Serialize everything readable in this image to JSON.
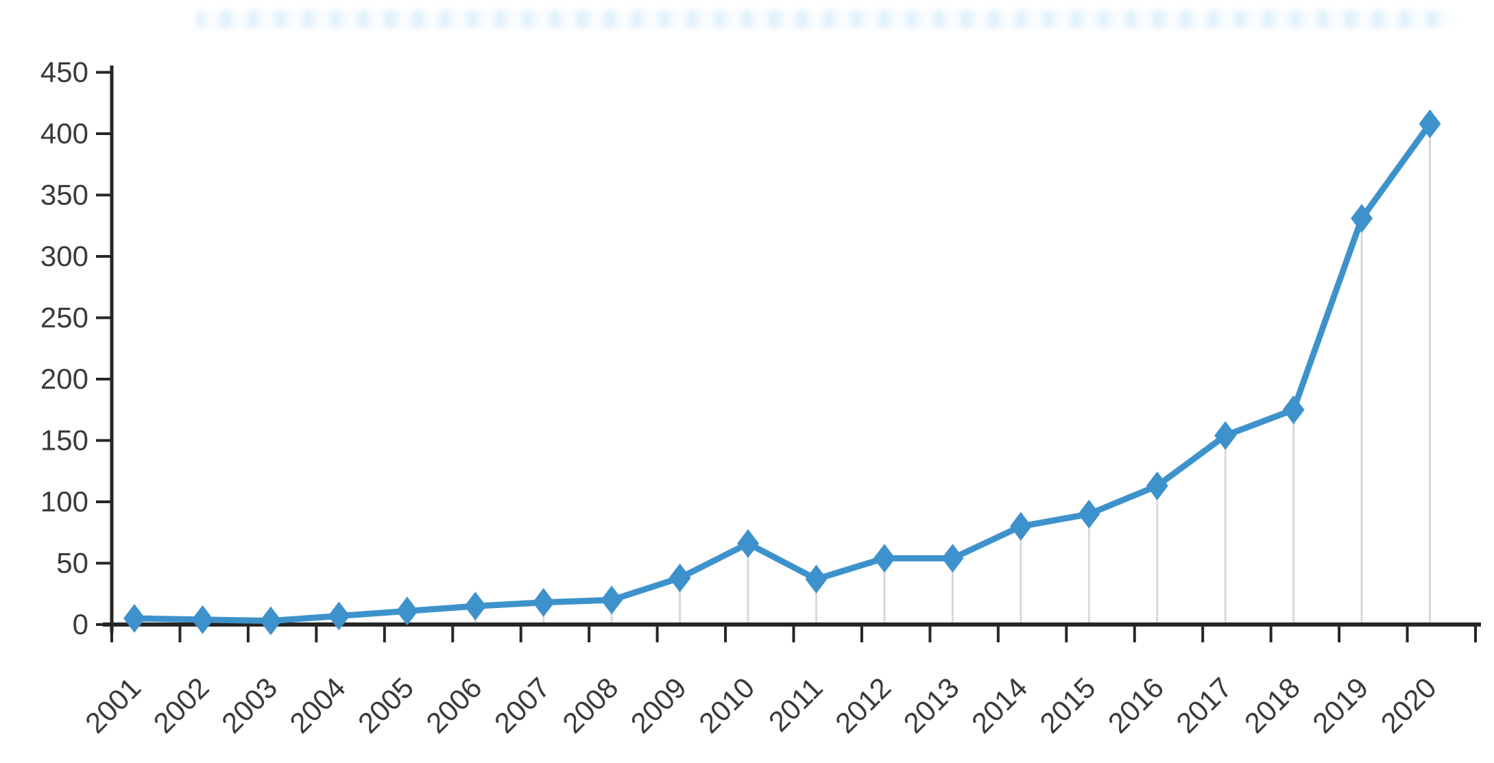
{
  "page": {
    "background_color": "#ffffff",
    "title_redacted": true,
    "title_text": ""
  },
  "chart_data": {
    "type": "line",
    "title": "",
    "subtitle": "",
    "xlabel": "",
    "ylabel": "",
    "x": [
      2001,
      2002,
      2003,
      2004,
      2005,
      2006,
      2007,
      2008,
      2009,
      2010,
      2011,
      2012,
      2013,
      2014,
      2015,
      2016,
      2017,
      2018,
      2019,
      2020
    ],
    "x_tick_labels": [
      "2001",
      "2002",
      "2003",
      "2004",
      "2005",
      "2006",
      "2007",
      "2008",
      "2009",
      "2010",
      "2011",
      "2012",
      "2013",
      "2014",
      "2015",
      "2016",
      "2017",
      "2018",
      "2019",
      "2020"
    ],
    "values": [
      5,
      4,
      3,
      7,
      11,
      15,
      18,
      20,
      38,
      66,
      37,
      54,
      54,
      80,
      90,
      113,
      154,
      175,
      331,
      408
    ],
    "series": [
      {
        "name": "",
        "values": [
          5,
          4,
          3,
          7,
          11,
          15,
          18,
          20,
          38,
          66,
          37,
          54,
          54,
          80,
          90,
          113,
          154,
          175,
          331,
          408
        ]
      }
    ],
    "ylim": [
      0,
      450
    ],
    "ytick_step": 50,
    "y_tick_labels": [
      "0",
      "50",
      "100",
      "150",
      "200",
      "250",
      "300",
      "350",
      "400",
      "450"
    ],
    "legend": "none",
    "grid": "vertical-drop-lines-only",
    "marker": "diamond",
    "colors": {
      "line": "#3e92cc",
      "marker": "#3e92cc",
      "drop_line": "#d9d9d9",
      "axis": "#262626",
      "tick_label": "#3a3a3a"
    }
  }
}
